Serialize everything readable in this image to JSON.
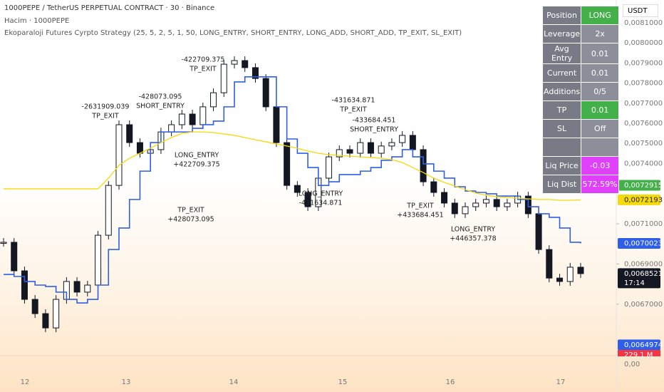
{
  "header": {
    "symbol": "1000PEPE / TetherUS PERPETUAL CONTRACT · 30 · Binance",
    "volume": "Hacim · 1000PEPE",
    "strategy": "Ekoparaloji Futures Cyrpto Strategy  (25, 5, 2, 5, 1, 50, LONG_ENTRY, SHORT_ENTRY, LONG_ADD, SHORT_ADD, TP_EXIT, SL_EXIT)"
  },
  "currency": "USDT",
  "table": {
    "rows": [
      [
        "Position",
        "LONG"
      ],
      [
        "Leverage",
        "2x"
      ],
      [
        "Avg Entry",
        "0.01"
      ],
      [
        "Current",
        "0.01"
      ],
      [
        "Additions",
        "0/5"
      ],
      [
        "TP",
        "0.01"
      ],
      [
        "SL",
        "Off"
      ],
      [
        "Liq Price",
        "-0.03"
      ],
      [
        "Liq Dist",
        "572.59%"
      ]
    ]
  },
  "chart_data": {
    "type": "candlestick",
    "ylim": [
      0.0064,
      0.0082
    ],
    "yticks": [
      {
        "value": 0.0081,
        "label": "0,0081000"
      },
      {
        "value": 0.008,
        "label": "0,0080000"
      },
      {
        "value": 0.0079,
        "label": "0,0079000"
      },
      {
        "value": 0.0078,
        "label": "0,0078000"
      },
      {
        "value": 0.0077,
        "label": "0,0077000"
      },
      {
        "value": 0.0076,
        "label": "0,0076000"
      },
      {
        "value": 0.0075,
        "label": "0,0075000"
      },
      {
        "value": 0.0074,
        "label": "0,0074000"
      },
      {
        "value": 0.0071,
        "label": "0,0071000"
      },
      {
        "value": 0.0069,
        "label": "0,0069000"
      },
      {
        "value": 0.0067,
        "label": "0,0067000"
      }
    ],
    "x_labels": [
      "12",
      "13",
      "14",
      "15",
      "16",
      "17"
    ],
    "volume_axis_label": "0,00",
    "volume_label": "229.1 M",
    "series": [
      {
        "name": "close",
        "color": "#131722",
        "values": [
          0.007008,
          0.006866,
          0.006724,
          0.006653,
          0.006582,
          0.006724,
          0.006813,
          0.00676,
          0.006795,
          0.007043,
          0.007291,
          0.007593,
          0.007504,
          0.007451,
          0.007469,
          0.007557,
          0.007593,
          0.007646,
          0.007593,
          0.007682,
          0.007752,
          0.007894,
          0.007912,
          0.007877,
          0.007823,
          0.007682,
          0.007504,
          0.007291,
          0.007256,
          0.007185,
          0.007327,
          0.007433,
          0.007469,
          0.007451,
          0.007504,
          0.007451,
          0.007487,
          0.007504,
          0.00754,
          0.007469,
          0.007309,
          0.007256,
          0.007203,
          0.00715,
          0.007185,
          0.007203,
          0.007221,
          0.007185,
          0.007203,
          0.007238,
          0.00715,
          0.006972,
          0.00683,
          0.006813,
          0.006884,
          0.0068521
        ]
      },
      {
        "name": "stop",
        "color": "#2f5fe8",
        "values": [
          0.006848,
          0.006838,
          0.006813,
          0.006795,
          0.006788,
          0.00676,
          0.006724,
          0.006706,
          0.006724,
          0.006795,
          0.006972,
          0.007079,
          0.007221,
          0.007362,
          0.007504,
          0.007557,
          0.007557,
          0.007557,
          0.007575,
          0.007593,
          0.007611,
          0.007682,
          0.007806,
          0.007831,
          0.007831,
          0.007831,
          0.007682,
          0.007522,
          0.007451,
          0.00738,
          0.007291,
          0.007309,
          0.007345,
          0.007345,
          0.007362,
          0.00738,
          0.007416,
          0.007433,
          0.007469,
          0.007433,
          0.007398,
          0.007362,
          0.007327,
          0.007284,
          0.007263,
          0.007256,
          0.007249,
          0.007238,
          0.007238,
          0.007221,
          0.007185,
          0.00715,
          0.007132,
          0.007079,
          0.007008,
          0.0070023
        ]
      },
      {
        "name": "average",
        "color": "#f5d90a",
        "values": [
          0.007274,
          0.007274,
          0.007274,
          0.007274,
          0.007274,
          0.007274,
          0.007274,
          0.007274,
          0.007274,
          0.007274,
          0.007327,
          0.007391,
          0.007426,
          0.007451,
          0.007476,
          0.007504,
          0.007529,
          0.00755,
          0.007557,
          0.007557,
          0.007554,
          0.007547,
          0.00754,
          0.007529,
          0.007518,
          0.007508,
          0.007497,
          0.007487,
          0.007476,
          0.007462,
          0.007451,
          0.007444,
          0.00744,
          0.007437,
          0.007433,
          0.00743,
          0.007426,
          0.007419,
          0.007405,
          0.00738,
          0.007355,
          0.007327,
          0.007306,
          0.007288,
          0.00727,
          0.007253,
          0.007242,
          0.007235,
          0.007231,
          0.007228,
          0.007224,
          0.007221,
          0.007221,
          0.007217,
          0.007217,
          0.0072193
        ]
      }
    ],
    "price_markers": [
      {
        "value": 0.0072915,
        "label": "0,0072915",
        "color": "#43b049"
      },
      {
        "value": 0.0072193,
        "label": "0,0072193",
        "color": "#f5d90a"
      },
      {
        "value": 0.0070023,
        "label": "0,0070023",
        "color": "#2f5fe8"
      },
      {
        "value": 0.0068521,
        "label": "0,0068521",
        "color": "#131722"
      },
      {
        "value": 0.0064974,
        "label": "0,0064974",
        "color": "#2f5fe8"
      }
    ],
    "countdown": "17:14",
    "annotations": [
      [
        "-2631909.039",
        "TP_EXIT"
      ],
      [
        "-428073.095",
        "SHORT_ENTRY"
      ],
      [
        "-422709.375",
        "TP_EXIT"
      ],
      [
        "LONG_ENTRY",
        "+422709.375"
      ],
      [
        "TP_EXIT",
        "+428073.095"
      ],
      [
        "-431634.871",
        "TP_EXIT"
      ],
      [
        "-433684.451",
        "SHORT_ENTRY"
      ],
      [
        "LONG_ENTRY",
        "-431634.871"
      ],
      [
        "TP_EXIT",
        "+433684.451"
      ],
      [
        "LONG_ENTRY",
        "+446357.378"
      ]
    ]
  }
}
